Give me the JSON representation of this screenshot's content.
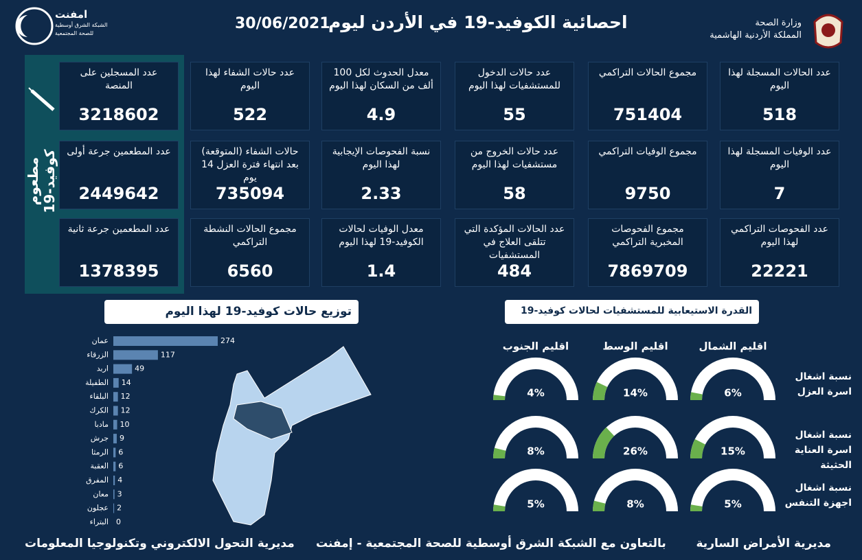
{
  "header": {
    "logo_name": "امفنت",
    "logo_line1": "الشبكة الشرق أوسطية",
    "logo_line2": "للصحة المجتمعية",
    "title": "احصائية الكوفيد-19 في الأردن ليوم",
    "date": "30/06/2021",
    "ministry": "وزارة الصحة",
    "kingdom": "المملكة الأردنية الهاشمية"
  },
  "cards": [
    {
      "label": "عدد الحالات المسجلة لهذا اليوم",
      "value": 518
    },
    {
      "label": "مجموع الحالات التراكمي",
      "value": 751404
    },
    {
      "label": "عدد حالات الدخول للمستشفيات لهذا اليوم",
      "value": 55
    },
    {
      "label": "معدل الحدوث لكل 100 ألف من السكان لهذا اليوم",
      "value": 4.9
    },
    {
      "label": "عدد حالات الشفاء لهذا اليوم",
      "value": 522
    },
    {
      "label": "عدد الوفيات المسجلة لهذا اليوم",
      "value": 7
    },
    {
      "label": "مجموع الوفيات التراكمي",
      "value": 9750
    },
    {
      "label": "عدد حالات الخروج من مستشفيات لهذا اليوم",
      "value": 58
    },
    {
      "label": "نسبة الفحوصات الإيجابية لهذا اليوم",
      "value": 2.33
    },
    {
      "label": "حالات الشفاء (المتوقعة) بعد انتهاء فترة العزل 14 يوم",
      "value": 735094
    },
    {
      "label": "عدد الفحوصات التراكمي لهذا اليوم",
      "value": 22221
    },
    {
      "label": "مجموع الفحوصات المخبرية التراكمي",
      "value": 7869709
    },
    {
      "label": "عدد الحالات المؤكدة التي تتلقى العلاج في المستشفيات",
      "value": 484
    },
    {
      "label": "معدل الوفيات لحالات الكوفيد-19 لهذا اليوم",
      "value": 1.4
    },
    {
      "label": "مجموع الحالات النشطة التراكمي",
      "value": 6560
    }
  ],
  "vaccine": {
    "title": "مطعوم كوفيد-19",
    "cards": [
      {
        "label": "عدد المسجلين على المنصة",
        "value": 3218602
      },
      {
        "label": "عدد المطعمين جرعة أولى",
        "value": 2449642
      },
      {
        "label": "عدد المطعمين جرعة ثانية",
        "value": 1378395
      }
    ]
  },
  "chart_data": [
    {
      "type": "bar",
      "title": "توزيع حالات كوفيد-19 لهذا اليوم",
      "color": "#5b84b1",
      "categories": [
        "عمان",
        "الزرقاء",
        "اربد",
        "الطفيلة",
        "البلقاء",
        "الكرك",
        "مادبا",
        "جرش",
        "الرمثا",
        "العقبة",
        "المفرق",
        "معان",
        "عجلون",
        "البتراء"
      ],
      "values": [
        274,
        117,
        49,
        14,
        12,
        12,
        10,
        9,
        6,
        6,
        4,
        3,
        2,
        0
      ]
    },
    {
      "type": "gauge",
      "title": "القدرة الاستيعابية للمستشفيات لحالات كوفيد-19",
      "ylim": [
        0,
        100
      ],
      "categories": [
        "نسبة اشغال اسرة العزل",
        "نسبة اشغال اسرة العناية الحثيثة",
        "نسبة اشغال اجهزة التنفس"
      ],
      "series": [
        {
          "name": "اقليم الشمال",
          "color": "#6ab04c",
          "values": [
            6,
            15,
            5
          ],
          "value_labels": [
            "6%",
            "15%",
            "5%"
          ]
        },
        {
          "name": "اقليم الوسط",
          "color": "#6ab04c",
          "values": [
            14,
            26,
            8
          ],
          "value_labels": [
            "14%",
            "26%",
            "8%"
          ]
        },
        {
          "name": "اقليم الجنوب",
          "color": "#6ab04c",
          "values": [
            4,
            8,
            5
          ],
          "value_labels": [
            "4%",
            "8%",
            "5%"
          ]
        }
      ]
    }
  ],
  "footer": {
    "right": "مديرية الأمراض السارية",
    "center": "بالتعاون مع الشبكة الشرق أوسطية للصحة المجتمعية - إمفنت",
    "left": "مديرية التحول الالكتروني وتكنولوجيا المعلومات"
  }
}
